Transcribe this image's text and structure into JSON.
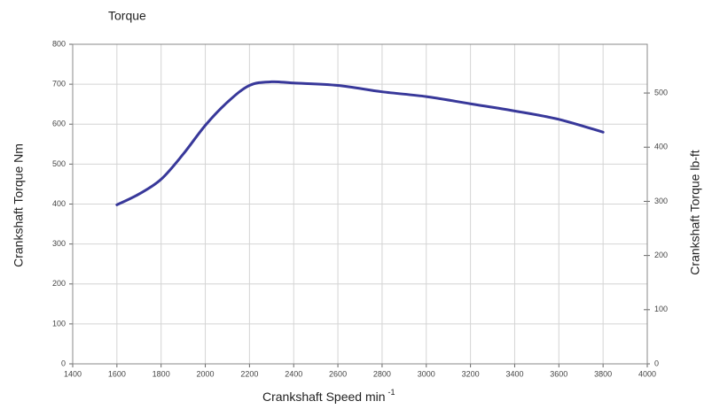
{
  "chart_data": {
    "type": "line",
    "title": "Torque",
    "ylabel": "Crankshaft Torque Nm",
    "y2label": "Crankshaft Torque lb-ft",
    "xlabel": {
      "text": "Crankshaft Speed min",
      "sup": "-1"
    },
    "x": [
      1600,
      1700,
      1800,
      1900,
      2000,
      2100,
      2200,
      2300,
      2400,
      2600,
      2800,
      3000,
      3200,
      3400,
      3600,
      3800
    ],
    "series": [
      {
        "name": "Torque",
        "color": "#38389a",
        "values": [
          398,
          425,
          462,
          525,
          597,
          655,
          697,
          706,
          703,
          697,
          681,
          669,
          651,
          633,
          612,
          580
        ]
      }
    ],
    "xlim": [
      1400,
      4000
    ],
    "xticks": [
      1400,
      1600,
      1800,
      2000,
      2200,
      2400,
      2600,
      2800,
      3000,
      3200,
      3400,
      3600,
      3800,
      4000
    ],
    "ylim": [
      0,
      800
    ],
    "yticks": [
      0,
      100,
      200,
      300,
      400,
      500,
      600,
      700,
      800
    ],
    "y2lim": [
      0,
      590
    ],
    "y2ticks": [
      0,
      100,
      200,
      300,
      400,
      500
    ],
    "grid": true
  }
}
